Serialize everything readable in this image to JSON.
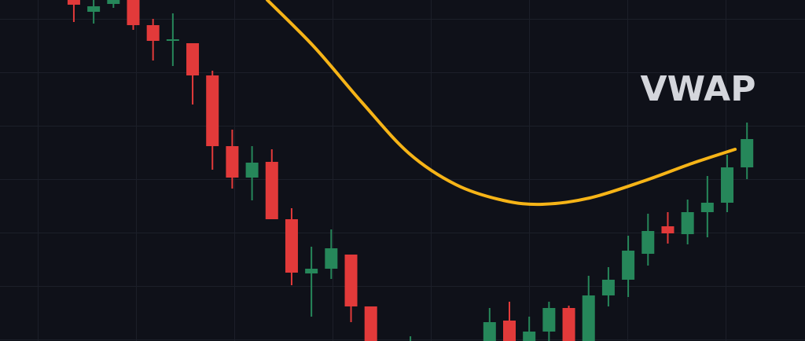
{
  "chart_data": {
    "type": "candlestick",
    "x": [
      0,
      1,
      2,
      3,
      4,
      5,
      6,
      7,
      8,
      9,
      10,
      11,
      12,
      13,
      14,
      15,
      17,
      21,
      22,
      23,
      24,
      25,
      26,
      27,
      28,
      29,
      30,
      31,
      32,
      33,
      34
    ],
    "open": [
      434,
      419,
      429,
      434,
      402,
      382,
      379,
      338,
      248,
      208,
      228,
      155,
      86,
      92,
      110,
      44,
      0,
      0,
      26,
      0,
      12,
      42,
      0,
      58,
      78,
      111,
      146,
      136,
      164,
      176,
      221
    ],
    "high": [
      434,
      434,
      434,
      434,
      410,
      417,
      379,
      344,
      269,
      248,
      244,
      169,
      120,
      142,
      110,
      44,
      6,
      42,
      50,
      31,
      50,
      45,
      83,
      94,
      134,
      162,
      164,
      180,
      210,
      237,
      278
    ],
    "low": [
      406,
      404,
      424,
      396,
      357,
      350,
      301,
      218,
      194,
      179,
      155,
      71,
      31,
      79,
      24,
      0,
      0,
      0,
      0,
      0,
      0,
      0,
      0,
      44,
      56,
      96,
      124,
      123,
      132,
      164,
      206
    ],
    "close": [
      428,
      426,
      434,
      402,
      382,
      384,
      338,
      248,
      208,
      227,
      155,
      87,
      92,
      118,
      44,
      0,
      0,
      24,
      0,
      12,
      42,
      0,
      58,
      78,
      115,
      140,
      137,
      164,
      176,
      221,
      257
    ],
    "up_color": "#26875a",
    "down_color": "#e23a3a",
    "line": {
      "name": "VWAP",
      "color": "#f6b417",
      "x": [
        9.77,
        12.15,
        14.54,
        16.92,
        19.3,
        21.68,
        23.67,
        26.05,
        28.83,
        31.22,
        33.4
      ],
      "values": [
        434,
        374,
        304,
        239,
        199,
        179,
        174,
        182,
        204,
        226,
        244
      ]
    },
    "xlim": [
      -3.73,
      36.93
    ],
    "ylim": [
      0,
      434
    ]
  }
}
